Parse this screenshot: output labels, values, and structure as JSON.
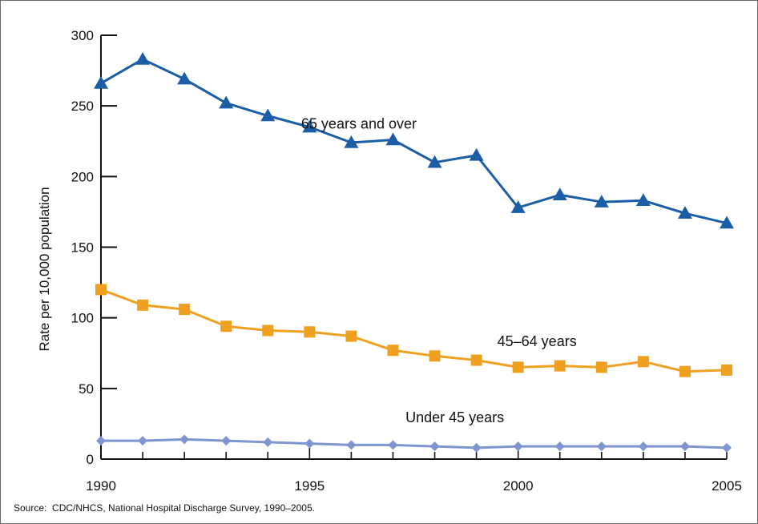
{
  "chart_data": {
    "type": "line",
    "title": "",
    "xlabel": "",
    "ylabel": "Rate per 10,000 population",
    "xlim": [
      1990,
      2005
    ],
    "ylim": [
      0,
      300
    ],
    "x_ticks": [
      "1990",
      "1995",
      "2000",
      "2005"
    ],
    "y_ticks": [
      "0",
      "50",
      "100",
      "150",
      "200",
      "250",
      "300"
    ],
    "grid": false,
    "legend": "none (series labeled directly on chart)",
    "x": [
      1990,
      1991,
      1992,
      1993,
      1994,
      1995,
      1996,
      1997,
      1998,
      1999,
      2000,
      2001,
      2002,
      2003,
      2004,
      2005
    ],
    "series": [
      {
        "name": "65 years and over",
        "color": "#1b5ea6",
        "marker": "triangle",
        "values": [
          266,
          283,
          269,
          252,
          243,
          235,
          224,
          226,
          210,
          215,
          178,
          187,
          182,
          183,
          174,
          167
        ]
      },
      {
        "name": "45–64 years",
        "color": "#f0a020",
        "marker": "square",
        "values": [
          120,
          109,
          106,
          94,
          91,
          90,
          87,
          77,
          73,
          70,
          65,
          66,
          65,
          69,
          62,
          63
        ]
      },
      {
        "name": "Under 45 years",
        "color": "#7f95d0",
        "marker": "diamond",
        "values": [
          13,
          13,
          14,
          13,
          12,
          11,
          10,
          10,
          9,
          8,
          9,
          9,
          9,
          9,
          9,
          8
        ]
      }
    ]
  },
  "source_note": "Source:  CDC/NHCS, National Hospital Discharge Survey, 1990–2005."
}
